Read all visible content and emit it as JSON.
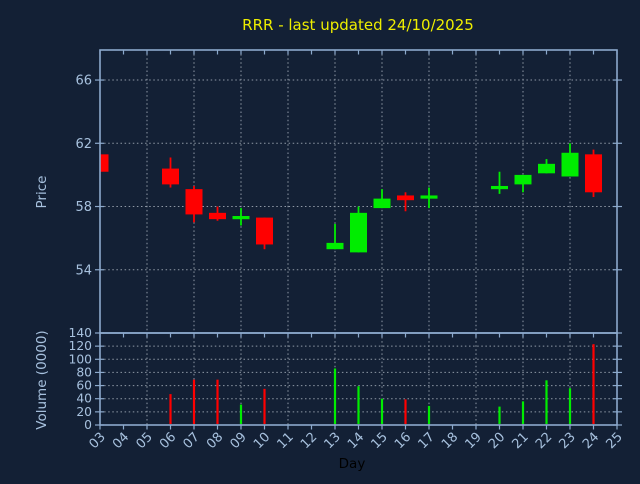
{
  "colors": {
    "background": "#132035",
    "axis": "#8CA9CC",
    "tick_label": "#A7C1DE",
    "grid": "#8F99A6",
    "up": "#00ED00",
    "down": "#FF0000",
    "title": "#EEEE00",
    "xlabel": "#000000"
  },
  "chart_data": [
    {
      "type": "candlestick",
      "title": "RRR - last updated 24/10/2025",
      "xlabel": "Day",
      "ylabel": "Price",
      "ylim": [
        50,
        67.9
      ],
      "yticks": [
        54,
        58,
        62,
        66
      ],
      "xlim_days": [
        3,
        25
      ],
      "xtick_labels": [
        "03",
        "04",
        "05",
        "06",
        "07",
        "08",
        "09",
        "10",
        "11",
        "12",
        "13",
        "14",
        "15",
        "16",
        "17",
        "18",
        "19",
        "20",
        "21",
        "22",
        "23",
        "24",
        "25"
      ],
      "grid": "dashed, vertical lines on odd days, horizontal on yticks",
      "legend": "none",
      "candles": [
        {
          "day": 3,
          "open": 61.3,
          "high": 61.3,
          "low": 60.2,
          "close": 60.2
        },
        {
          "day": 6,
          "open": 60.4,
          "high": 61.1,
          "low": 59.2,
          "close": 59.4
        },
        {
          "day": 7,
          "open": 59.1,
          "high": 59.3,
          "low": 57.0,
          "close": 57.5
        },
        {
          "day": 8,
          "open": 57.6,
          "high": 58.0,
          "low": 57.1,
          "close": 57.2
        },
        {
          "day": 9,
          "open": 57.3,
          "high": 57.9,
          "low": 56.8,
          "close": 57.4
        },
        {
          "day": 10,
          "open": 57.3,
          "high": 57.3,
          "low": 55.3,
          "close": 55.6
        },
        {
          "day": 13,
          "open": 55.3,
          "high": 56.9,
          "low": 55.3,
          "close": 55.7
        },
        {
          "day": 14,
          "open": 55.1,
          "high": 58.0,
          "low": 55.1,
          "close": 57.6
        },
        {
          "day": 15,
          "open": 57.9,
          "high": 59.1,
          "low": 57.9,
          "close": 58.5
        },
        {
          "day": 16,
          "open": 58.7,
          "high": 58.9,
          "low": 57.7,
          "close": 58.4
        },
        {
          "day": 17,
          "open": 58.5,
          "high": 59.2,
          "low": 57.9,
          "close": 58.7
        },
        {
          "day": 20,
          "open": 59.1,
          "high": 60.2,
          "low": 58.8,
          "close": 59.3
        },
        {
          "day": 21,
          "open": 59.4,
          "high": 60.0,
          "low": 58.9,
          "close": 60.0
        },
        {
          "day": 22,
          "open": 60.1,
          "high": 61.0,
          "low": 60.1,
          "close": 60.7
        },
        {
          "day": 23,
          "open": 59.9,
          "high": 62.0,
          "low": 59.9,
          "close": 61.4
        },
        {
          "day": 24,
          "open": 61.3,
          "high": 61.6,
          "low": 58.6,
          "close": 58.9
        }
      ]
    },
    {
      "type": "bar",
      "ylabel": "Volume (0000)",
      "ylim": [
        0,
        140
      ],
      "yticks": [
        0,
        20,
        40,
        60,
        80,
        100,
        120,
        140
      ],
      "bars": [
        {
          "day": 6,
          "volume": 47,
          "direction": "down"
        },
        {
          "day": 7,
          "volume": 69,
          "direction": "down"
        },
        {
          "day": 8,
          "volume": 69,
          "direction": "down"
        },
        {
          "day": 9,
          "volume": 31,
          "direction": "up"
        },
        {
          "day": 10,
          "volume": 55,
          "direction": "down"
        },
        {
          "day": 13,
          "volume": 86,
          "direction": "up"
        },
        {
          "day": 14,
          "volume": 59,
          "direction": "up"
        },
        {
          "day": 15,
          "volume": 40,
          "direction": "up"
        },
        {
          "day": 16,
          "volume": 39,
          "direction": "down"
        },
        {
          "day": 17,
          "volume": 29,
          "direction": "up"
        },
        {
          "day": 20,
          "volume": 28,
          "direction": "up"
        },
        {
          "day": 21,
          "volume": 36,
          "direction": "up"
        },
        {
          "day": 22,
          "volume": 68,
          "direction": "up"
        },
        {
          "day": 23,
          "volume": 56,
          "direction": "up"
        },
        {
          "day": 24,
          "volume": 123,
          "direction": "down"
        }
      ]
    }
  ]
}
